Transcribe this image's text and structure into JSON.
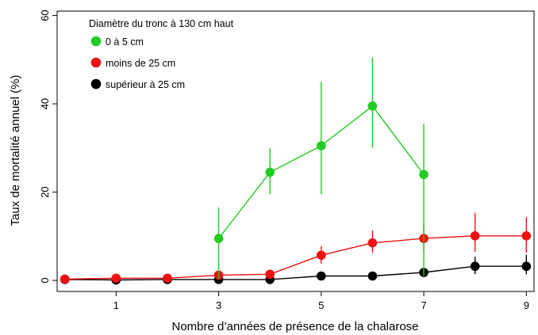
{
  "chart_data": {
    "type": "line",
    "title": "",
    "xlabel": "Nombre d’années de présence de la chalarose",
    "ylabel": "Taux de mortalité annuel (%)",
    "xlim": [
      -0.15,
      9.15
    ],
    "ylim": [
      -2.5,
      61
    ],
    "x_ticks": [
      1,
      3,
      5,
      7,
      9
    ],
    "y_ticks": [
      0,
      20,
      40,
      60
    ],
    "grid": false,
    "legend": {
      "title": "Diamètre du tronc à 130 cm haut",
      "position": "top-left"
    },
    "series": [
      {
        "name": "0 à 5 cm",
        "color": "#22cc22",
        "x": [
          3,
          4,
          5,
          6,
          7
        ],
        "y": [
          9.5,
          24.5,
          30.5,
          39.5,
          24.0
        ],
        "err_low": [
          0.5,
          19.5,
          19.5,
          30.0,
          1.0
        ],
        "err_high": [
          16.5,
          30.0,
          45.0,
          50.5,
          35.5
        ]
      },
      {
        "name": "moins de 25 cm",
        "color": "#ee1111",
        "x": [
          0,
          1,
          2,
          3,
          4,
          5,
          6,
          7,
          8,
          9
        ],
        "y": [
          0.3,
          0.5,
          0.5,
          1.2,
          1.4,
          5.7,
          8.5,
          9.5,
          10.1,
          10.1
        ],
        "err_low": [
          0.0,
          0.1,
          0.1,
          0.5,
          0.6,
          3.8,
          6.3,
          6.8,
          6.5,
          6.3
        ],
        "err_high": [
          0.6,
          0.9,
          0.9,
          1.8,
          2.2,
          7.8,
          11.3,
          12.5,
          15.3,
          14.3
        ]
      },
      {
        "name": "supérieur à 25 cm",
        "color": "#000000",
        "x": [
          0,
          1,
          2,
          3,
          4,
          5,
          6,
          7,
          8,
          9
        ],
        "y": [
          0.2,
          0.1,
          0.2,
          0.2,
          0.2,
          1.0,
          1.0,
          1.8,
          3.2,
          3.2
        ],
        "err_low": [
          0.0,
          0.0,
          0.0,
          0.0,
          0.0,
          0.4,
          0.4,
          0.9,
          1.4,
          1.4
        ],
        "err_high": [
          0.4,
          0.2,
          0.5,
          0.5,
          0.5,
          1.6,
          1.6,
          2.8,
          5.4,
          5.8
        ]
      }
    ]
  }
}
